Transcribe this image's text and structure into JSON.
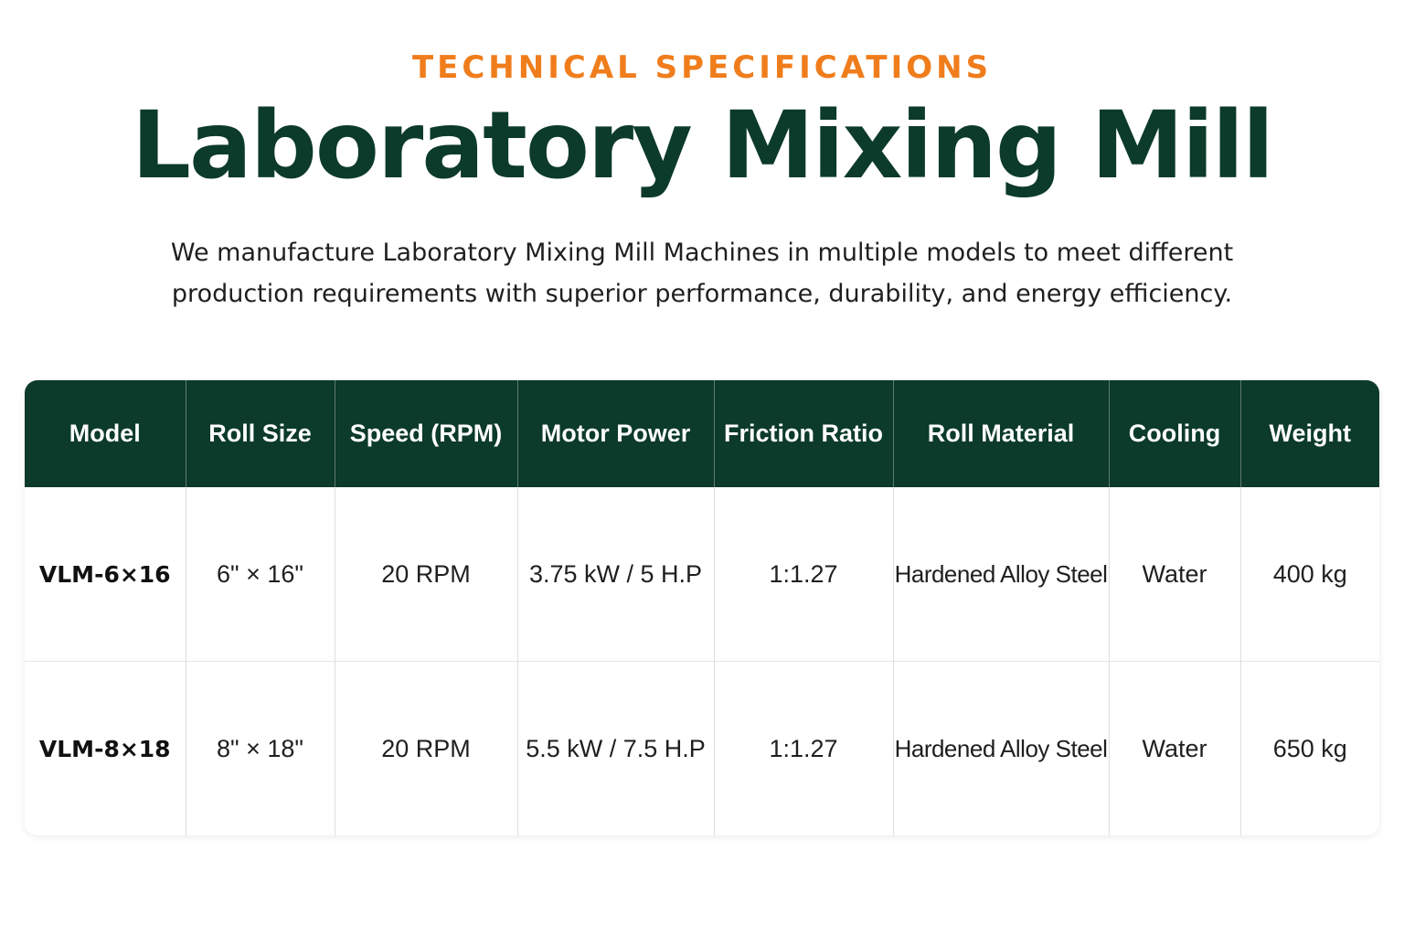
{
  "header": {
    "eyebrow": "TECHNICAL SPECIFICATIONS",
    "title": "Laboratory Mixing Mill",
    "intro": "We manufacture Laboratory Mixing Mill Machines in multiple models to meet different production requirements with superior performance, durability, and energy efficiency."
  },
  "colors": {
    "accent": "#f07d1c",
    "brand_dark": "#0c3a2b"
  },
  "table": {
    "columns": [
      "Model",
      "Roll Size",
      "Speed (RPM)",
      "Motor Power",
      "Friction Ratio",
      "Roll Material",
      "Cooling",
      "Weight"
    ],
    "rows": [
      [
        "VLM-6×16",
        "6\" × 16\"",
        "20 RPM",
        "3.75 kW / 5 H.P",
        "1:1.27",
        "Hardened Alloy Steel",
        "Water",
        "400 kg"
      ],
      [
        "VLM-8×18",
        "8\" × 18\"",
        "20 RPM",
        "5.5 kW / 7.5 H.P",
        "1:1.27",
        "Hardened Alloy Steel",
        "Water",
        "650 kg"
      ]
    ]
  }
}
